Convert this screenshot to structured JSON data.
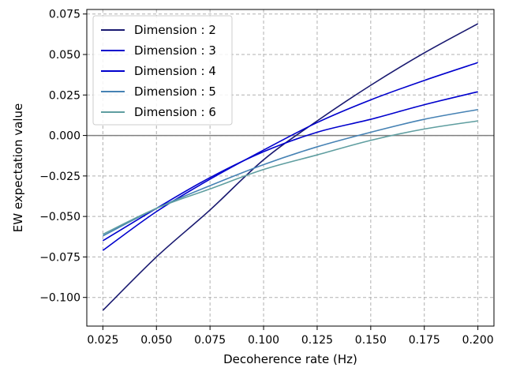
{
  "chart_data": {
    "type": "line",
    "xlabel": "Decoherence rate (Hz)",
    "ylabel": "EW expectation value",
    "xlim": [
      0.0175,
      0.2075
    ],
    "ylim": [
      -0.1177,
      0.0778
    ],
    "xticks": [
      0.025,
      0.05,
      0.075,
      0.1,
      0.125,
      0.15,
      0.175,
      0.2
    ],
    "xtick_labels": [
      "0.025",
      "0.050",
      "0.075",
      "0.100",
      "0.125",
      "0.150",
      "0.175",
      "0.200"
    ],
    "yticks": [
      -0.1,
      -0.075,
      -0.05,
      -0.025,
      0.0,
      0.025,
      0.05,
      0.075
    ],
    "ytick_labels": [
      "−0.100",
      "−0.075",
      "−0.050",
      "−0.025",
      "0.000",
      "0.025",
      "0.050",
      "0.075"
    ],
    "grid": true,
    "reference_line": 0.0,
    "legend_position": "upper-left",
    "x": [
      0.025,
      0.05,
      0.075,
      0.1,
      0.125,
      0.15,
      0.175,
      0.2
    ],
    "series": [
      {
        "name": "Dimension : 2",
        "color": "#191970",
        "values": [
          -0.108,
          -0.075,
          -0.046,
          -0.015,
          0.009,
          0.031,
          0.051,
          0.069
        ]
      },
      {
        "name": "Dimension : 3",
        "color": "#0000CD",
        "values": [
          -0.071,
          -0.047,
          -0.027,
          -0.009,
          0.008,
          0.022,
          0.034,
          0.045
        ]
      },
      {
        "name": "Dimension : 4",
        "color": "#0000CD",
        "values": [
          -0.065,
          -0.045,
          -0.026,
          -0.01,
          0.002,
          0.01,
          0.019,
          0.027
        ]
      },
      {
        "name": "Dimension : 5",
        "color": "#4682B4",
        "values": [
          -0.062,
          -0.045,
          -0.031,
          -0.018,
          -0.007,
          0.002,
          0.01,
          0.016
        ]
      },
      {
        "name": "Dimension : 6",
        "color": "#5F9EA0",
        "values": [
          -0.061,
          -0.045,
          -0.033,
          -0.021,
          -0.012,
          -0.003,
          0.004,
          0.009
        ]
      }
    ]
  }
}
